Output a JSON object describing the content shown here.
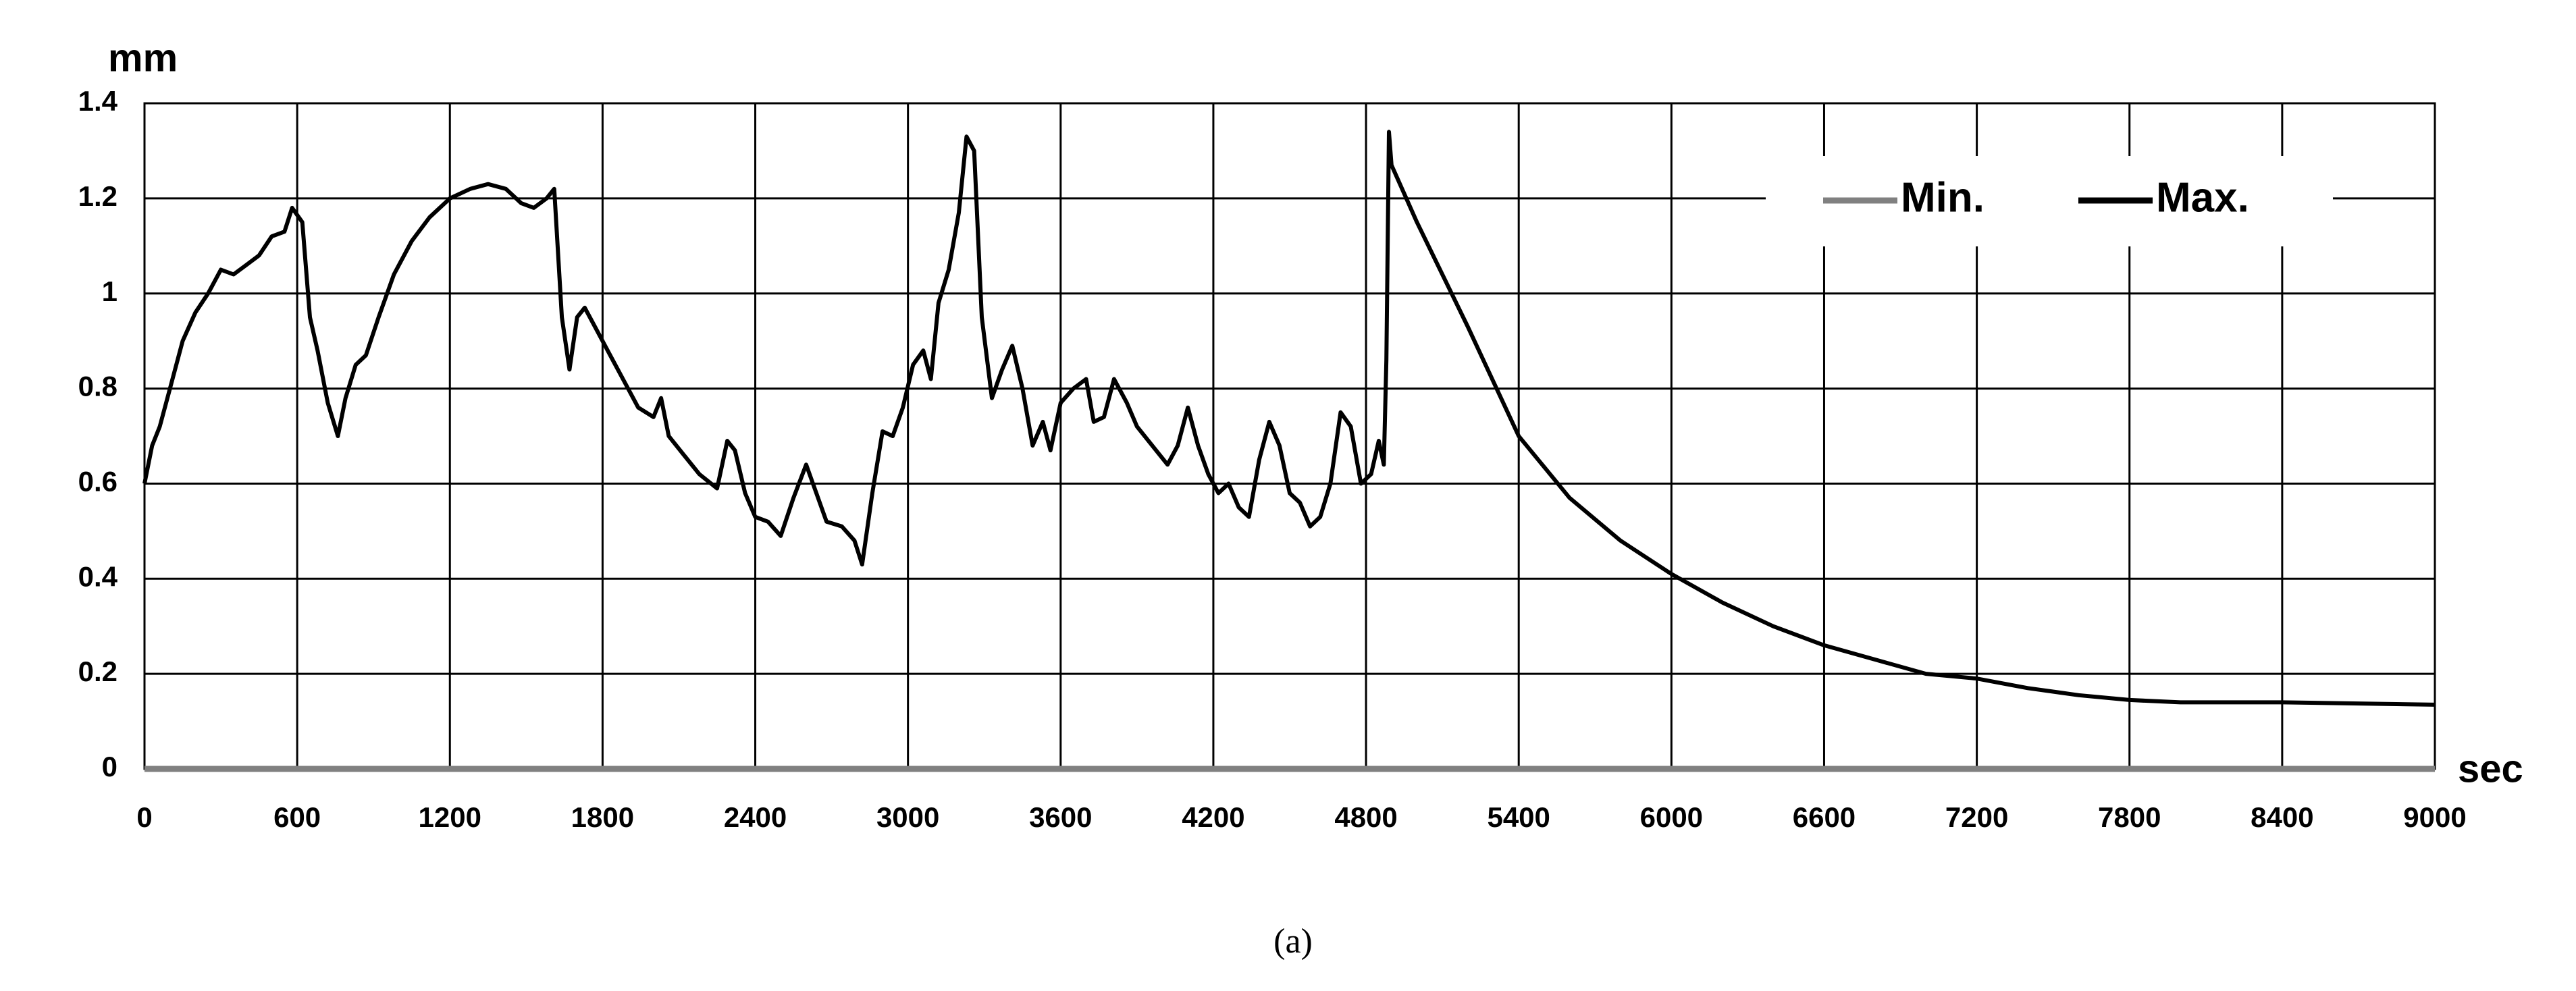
{
  "chart_data": {
    "type": "line",
    "y_label": "mm",
    "x_label": "sec",
    "caption": "(a)",
    "x": [
      0,
      30,
      60,
      100,
      150,
      200,
      250,
      300,
      350,
      400,
      450,
      500,
      550,
      580,
      620,
      650,
      680,
      720,
      760,
      790,
      830,
      870,
      920,
      980,
      1050,
      1120,
      1200,
      1280,
      1350,
      1420,
      1480,
      1530,
      1580,
      1610,
      1640,
      1670,
      1700,
      1730,
      1780,
      1830,
      1880,
      1940,
      2000,
      2030,
      2060,
      2120,
      2180,
      2250,
      2290,
      2320,
      2360,
      2400,
      2450,
      2500,
      2550,
      2600,
      2640,
      2680,
      2740,
      2790,
      2820,
      2860,
      2900,
      2940,
      2980,
      3020,
      3060,
      3090,
      3120,
      3160,
      3200,
      3230,
      3260,
      3290,
      3330,
      3370,
      3410,
      3450,
      3490,
      3530,
      3560,
      3600,
      3650,
      3700,
      3730,
      3770,
      3810,
      3860,
      3900,
      3960,
      4020,
      4060,
      4100,
      4140,
      4180,
      4220,
      4260,
      4300,
      4340,
      4380,
      4420,
      4460,
      4500,
      4540,
      4580,
      4620,
      4660,
      4700,
      4740,
      4780,
      4820,
      4850,
      4870,
      4880,
      4890,
      4900,
      5000,
      5200,
      5400,
      5600,
      5800,
      6000,
      6200,
      6400,
      6600,
      6800,
      7000,
      7200,
      7400,
      7600,
      7800,
      8000,
      8400,
      9000
    ],
    "series": [
      {
        "name": "Min.",
        "color": "#808080",
        "width": 9,
        "values": [
          0,
          0,
          0,
          0,
          0,
          0,
          0,
          0,
          0,
          0,
          0,
          0,
          0,
          0,
          0,
          0,
          0,
          0,
          0,
          0,
          0,
          0,
          0,
          0,
          0,
          0,
          0,
          0,
          0,
          0,
          0,
          0,
          0,
          0,
          0,
          0,
          0,
          0,
          0,
          0,
          0,
          0,
          0,
          0,
          0,
          0,
          0,
          0,
          0,
          0,
          0,
          0,
          0,
          0,
          0,
          0,
          0,
          0,
          0,
          0,
          0,
          0,
          0,
          0,
          0,
          0,
          0,
          0,
          0,
          0,
          0,
          0,
          0,
          0,
          0,
          0,
          0,
          0,
          0,
          0,
          0,
          0,
          0,
          0,
          0,
          0,
          0,
          0,
          0,
          0,
          0,
          0,
          0,
          0,
          0,
          0,
          0,
          0,
          0,
          0,
          0,
          0,
          0,
          0,
          0,
          0,
          0,
          0,
          0,
          0,
          0,
          0,
          0,
          0,
          0,
          0,
          0,
          0,
          0,
          0,
          0,
          0,
          0,
          0,
          0,
          0,
          0,
          0,
          0,
          0,
          0,
          0,
          0,
          0
        ]
      },
      {
        "name": "Max.",
        "color": "#000000",
        "width": 6,
        "values": [
          0.6,
          0.68,
          0.72,
          0.8,
          0.9,
          0.96,
          1.0,
          1.05,
          1.04,
          1.06,
          1.08,
          1.12,
          1.13,
          1.18,
          1.15,
          0.95,
          0.88,
          0.77,
          0.7,
          0.78,
          0.85,
          0.87,
          0.95,
          1.04,
          1.11,
          1.16,
          1.2,
          1.22,
          1.23,
          1.22,
          1.19,
          1.18,
          1.2,
          1.22,
          0.95,
          0.84,
          0.95,
          0.97,
          0.92,
          0.87,
          0.82,
          0.76,
          0.74,
          0.78,
          0.7,
          0.66,
          0.62,
          0.59,
          0.69,
          0.67,
          0.58,
          0.53,
          0.52,
          0.49,
          0.57,
          0.64,
          0.58,
          0.52,
          0.51,
          0.48,
          0.43,
          0.58,
          0.71,
          0.7,
          0.76,
          0.85,
          0.88,
          0.82,
          0.98,
          1.05,
          1.17,
          1.33,
          1.3,
          0.95,
          0.78,
          0.84,
          0.89,
          0.8,
          0.68,
          0.73,
          0.67,
          0.77,
          0.8,
          0.82,
          0.73,
          0.74,
          0.82,
          0.77,
          0.72,
          0.68,
          0.64,
          0.68,
          0.76,
          0.68,
          0.62,
          0.58,
          0.6,
          0.55,
          0.53,
          0.65,
          0.73,
          0.68,
          0.58,
          0.56,
          0.51,
          0.53,
          0.6,
          0.75,
          0.72,
          0.6,
          0.62,
          0.69,
          0.64,
          0.86,
          1.34,
          1.27,
          1.15,
          0.93,
          0.7,
          0.57,
          0.48,
          0.41,
          0.35,
          0.3,
          0.26,
          0.23,
          0.2,
          0.19,
          0.17,
          0.155,
          0.145,
          0.14,
          0.14,
          0.135
        ]
      }
    ],
    "xlim": [
      0,
      9000
    ],
    "xticks": [
      0,
      600,
      1200,
      1800,
      2400,
      3000,
      3600,
      4200,
      4800,
      5400,
      6000,
      6600,
      7200,
      7800,
      8400,
      9000
    ],
    "ylim": [
      0,
      1.4
    ],
    "yticks": [
      0,
      0.2,
      0.4,
      0.6,
      0.8,
      1,
      1.2,
      1.4
    ],
    "grid": true,
    "legend": "top-right"
  }
}
